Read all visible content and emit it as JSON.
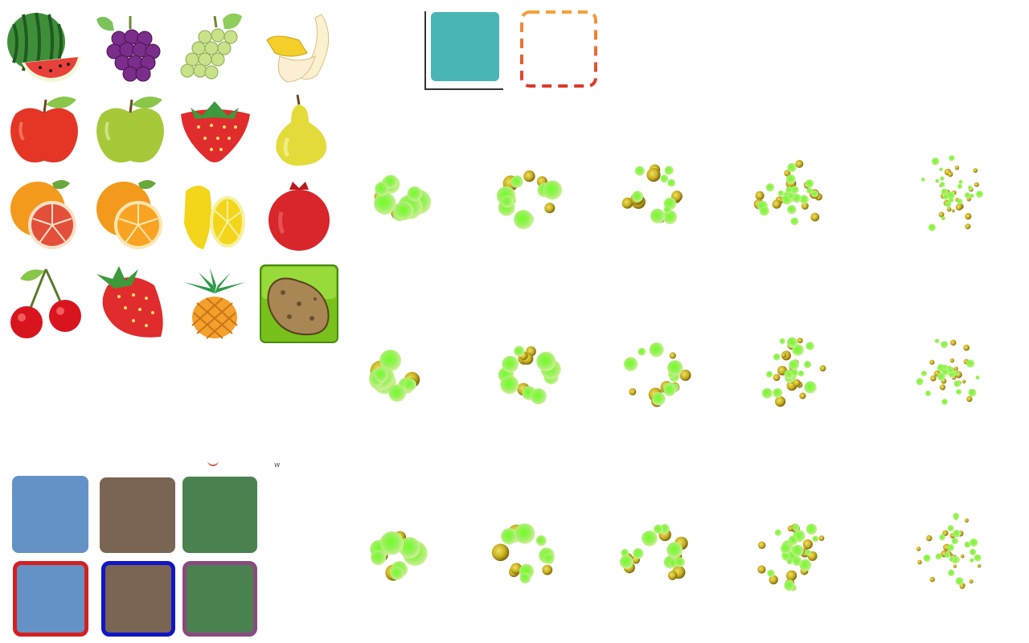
{
  "fruit_grid": {
    "rows": [
      [
        "watermelon",
        "purple-grapes",
        "green-grapes",
        "banana"
      ],
      [
        "red-apple",
        "green-apple",
        "strawberry",
        "pear"
      ],
      [
        "blood-orange",
        "orange",
        "lemon",
        "pomegranate"
      ],
      [
        "cherries",
        "strawberry-whole",
        "pineapple",
        "potato"
      ]
    ]
  },
  "slot_tiles": {
    "filled_color": "#4ab5b5",
    "empty_dash_colors": [
      "#f5a03a",
      "#d93a2a"
    ]
  },
  "color_tiles": {
    "top_row": [
      "#6492c6",
      "#7a6552",
      "#4a8250"
    ],
    "bottom_row": [
      {
        "fill": "#6492c6",
        "border": "#d42020"
      },
      {
        "fill": "#7a6552",
        "border": "#1016c8"
      },
      {
        "fill": "#4a8250",
        "border": "#8a4a80"
      }
    ],
    "stray_glyph": "w"
  },
  "burst_animation": {
    "rows": 3,
    "frames_per_row": 5,
    "ball_colors": [
      "#6cff20",
      "#c8b020"
    ]
  }
}
